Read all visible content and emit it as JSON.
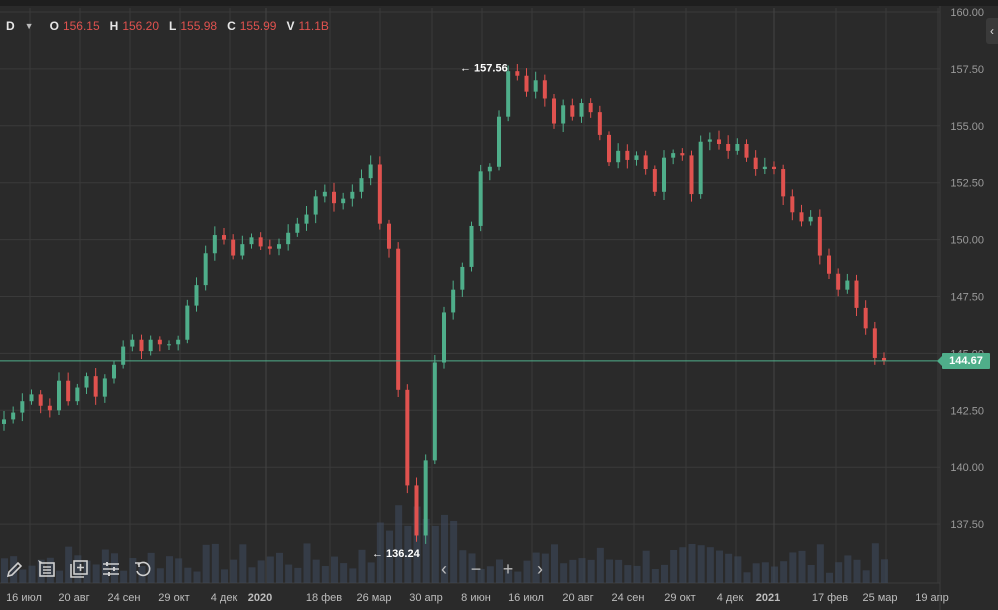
{
  "legend": {
    "interval": "D",
    "open_key": "O",
    "open": "156.15",
    "high_key": "H",
    "high": "156.20",
    "low_key": "L",
    "low": "155.98",
    "close_key": "C",
    "close": "155.99",
    "volume_key": "V",
    "volume": "11.1B"
  },
  "last_price": "144.67",
  "annotations": {
    "high": "157.56",
    "low": "136.24"
  },
  "colors": {
    "background": "#2a2a2a",
    "up": "#4fae8a",
    "down": "#e0524f",
    "grid": "#3a3a3a",
    "volume": "#3e4a5c",
    "price_line": "#4fae8a"
  },
  "toolbar": {
    "draw_icon": "pencil-icon",
    "template_icon": "list-icon",
    "compare_icon": "add-layer-icon",
    "settings_icon": "sliders-icon",
    "reset_icon": "undo-icon",
    "nav": [
      "‹",
      "−",
      "+",
      "›"
    ]
  },
  "chart_data": {
    "type": "candlestick",
    "ylim": [
      135,
      160
    ],
    "y_ticks": [
      "137.50",
      "140.00",
      "142.50",
      "145.00",
      "147.50",
      "150.00",
      "152.50",
      "155.00",
      "157.50",
      "160.00"
    ],
    "x_ticks": [
      "16 июл",
      "20 авг",
      "24 сен",
      "29 окт",
      "4 дек",
      "2020",
      "18 фев",
      "26 мар",
      "30 апр",
      "8 июн",
      "16 июл",
      "20 авг",
      "24 сен",
      "29 окт",
      "4 дек",
      "2021",
      "17 фев",
      "25 мар",
      "19 апр"
    ],
    "close": [
      142.1,
      142.4,
      142.9,
      143.2,
      142.7,
      142.5,
      143.8,
      142.9,
      143.5,
      144.0,
      143.1,
      143.9,
      144.5,
      145.3,
      145.6,
      145.1,
      145.6,
      145.4,
      145.4,
      145.6,
      147.1,
      148.0,
      149.4,
      150.2,
      150.0,
      149.3,
      149.8,
      150.1,
      149.7,
      149.6,
      149.8,
      150.3,
      150.7,
      151.1,
      151.9,
      152.1,
      151.6,
      151.8,
      152.1,
      152.7,
      153.3,
      150.7,
      149.6,
      143.4,
      139.2,
      137.0,
      140.3,
      144.6,
      146.8,
      147.8,
      148.8,
      150.6,
      153.0,
      153.2,
      155.4,
      157.4,
      157.2,
      156.5,
      157.0,
      156.2,
      155.1,
      155.9,
      155.4,
      156.0,
      155.6,
      154.6,
      153.4,
      153.9,
      153.5,
      153.7,
      153.1,
      152.1,
      153.6,
      153.8,
      153.7,
      152.0,
      154.3,
      154.4,
      154.2,
      153.9,
      154.2,
      153.6,
      153.1,
      153.2,
      153.1,
      151.9,
      151.2,
      150.8,
      151.0,
      149.3,
      148.5,
      147.8,
      148.2,
      147.0,
      146.1,
      144.8,
      144.67
    ]
  }
}
